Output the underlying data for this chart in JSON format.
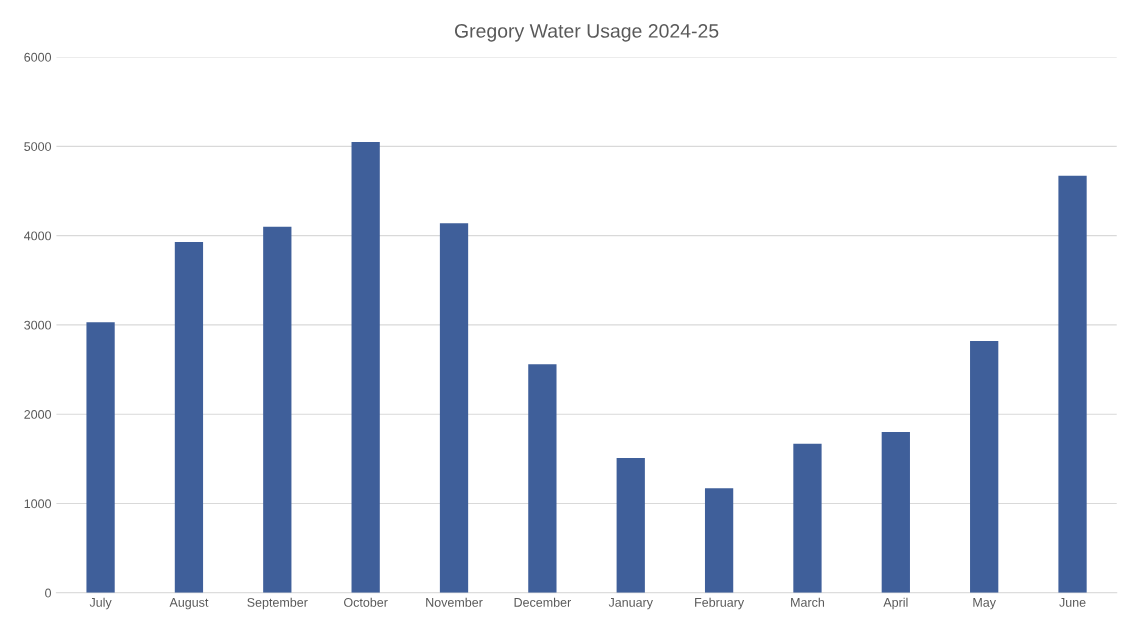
{
  "chart_data": {
    "type": "bar",
    "title": "Gregory Water Usage 2024-25",
    "categories": [
      "July",
      "August",
      "September",
      "October",
      "November",
      "December",
      "January",
      "February",
      "March",
      "April",
      "May",
      "June"
    ],
    "values": [
      3030,
      3930,
      4100,
      5050,
      4140,
      2560,
      1510,
      1170,
      1670,
      1800,
      2820,
      4670
    ],
    "color": "#3f5f9a",
    "ylim": [
      0,
      6000
    ],
    "yticks": [
      0,
      1000,
      2000,
      3000,
      4000,
      5000,
      6000
    ],
    "grid": "y",
    "legend": false
  }
}
